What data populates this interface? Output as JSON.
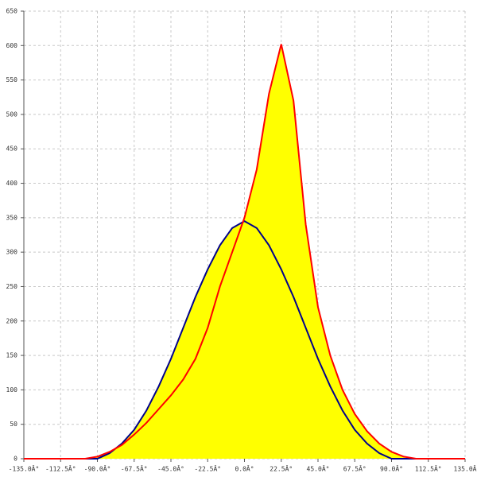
{
  "chart_data": {
    "type": "area",
    "x": [
      -135,
      -127.5,
      -120,
      -112.5,
      -105,
      -97.5,
      -90,
      -82.5,
      -75,
      -67.5,
      -60,
      -52.5,
      -45,
      -37.5,
      -30,
      -22.5,
      -15,
      -7.5,
      0,
      7.5,
      15,
      22.5,
      30,
      37.5,
      45,
      52.5,
      60,
      67.5,
      75,
      82.5,
      90,
      97.5,
      105,
      112.5,
      120,
      127.5,
      135
    ],
    "series": [
      {
        "color": "#00008b",
        "values": [
          0,
          0,
          0,
          0,
          0,
          0,
          0,
          8,
          22,
          42,
          70,
          105,
          145,
          190,
          235,
          275,
          310,
          335,
          345,
          335,
          310,
          275,
          235,
          190,
          145,
          105,
          70,
          42,
          22,
          8,
          0,
          0,
          0,
          0,
          0,
          0,
          0
        ]
      },
      {
        "color": "#ff0000",
        "values": [
          0,
          0,
          0,
          0,
          0,
          0,
          3,
          10,
          20,
          35,
          52,
          72,
          92,
          115,
          145,
          190,
          250,
          300,
          350,
          420,
          530,
          602,
          520,
          340,
          220,
          150,
          100,
          65,
          40,
          22,
          10,
          3,
          0,
          0,
          0,
          0,
          0
        ]
      }
    ],
    "fill_color": "#ffff00",
    "xlim": [
      -135,
      135
    ],
    "xticks": [
      {
        "value": -135,
        "label": "-135.0Â°"
      },
      {
        "value": -112.5,
        "label": "-112.5Â°"
      },
      {
        "value": -90,
        "label": "-90.0Â°"
      },
      {
        "value": -67.5,
        "label": "-67.5Â°"
      },
      {
        "value": -45,
        "label": "-45.0Â°"
      },
      {
        "value": -22.5,
        "label": "-22.5Â°"
      },
      {
        "value": 0,
        "label": "0.0Â°"
      },
      {
        "value": 22.5,
        "label": "22.5Â°"
      },
      {
        "value": 45,
        "label": "45.0Â°"
      },
      {
        "value": 67.5,
        "label": "67.5Â°"
      },
      {
        "value": 90,
        "label": "90.0Â°"
      },
      {
        "value": 112.5,
        "label": "112.5Â°"
      },
      {
        "value": 135,
        "label": "135.0Â"
      }
    ],
    "ylim": [
      0,
      650
    ],
    "yticks": [
      0,
      50,
      100,
      150,
      200,
      250,
      300,
      350,
      400,
      450,
      500,
      550,
      600,
      650
    ],
    "grid": true
  }
}
